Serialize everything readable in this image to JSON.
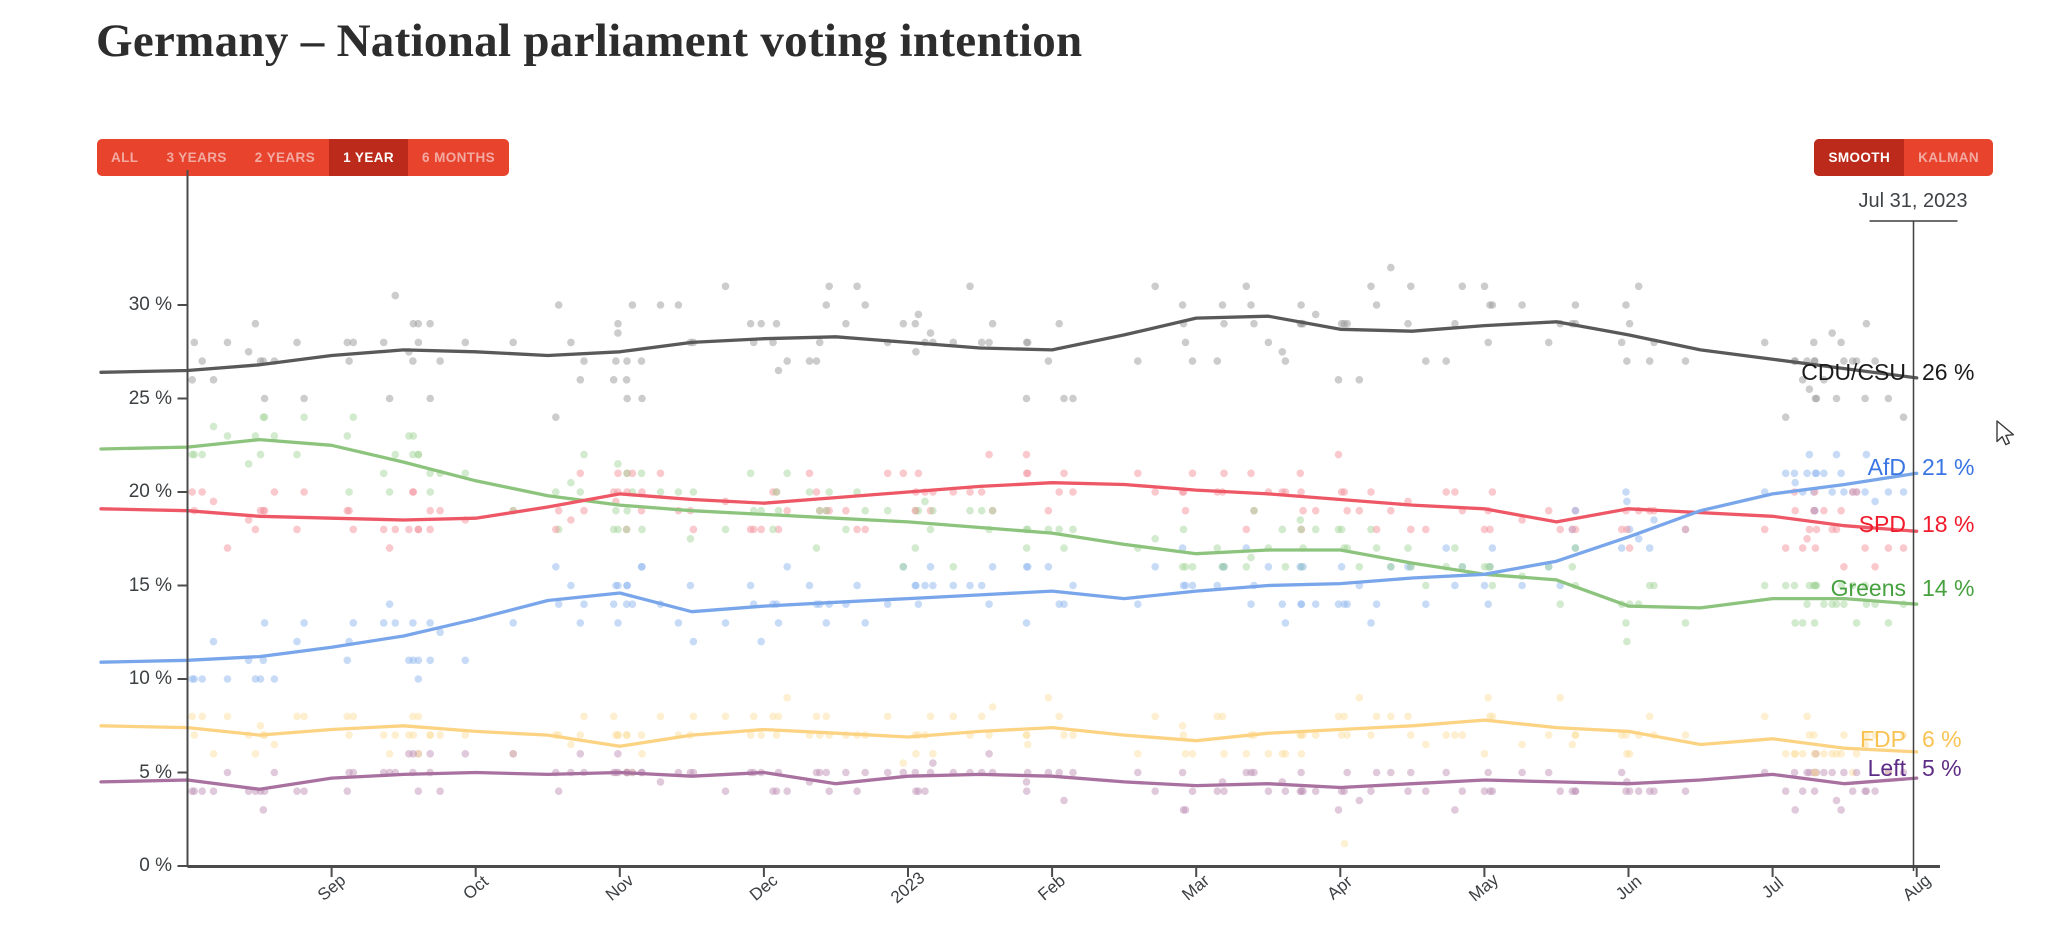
{
  "header": {
    "title": "Germany – National parliament voting intention"
  },
  "controls": {
    "range_buttons": [
      {
        "label": "ALL",
        "active": false
      },
      {
        "label": "3 YEARS",
        "active": false
      },
      {
        "label": "2 YEARS",
        "active": false
      },
      {
        "label": "1 YEAR",
        "active": true
      },
      {
        "label": "6 MONTHS",
        "active": false
      }
    ],
    "mode_buttons": [
      {
        "label": "SMOOTH",
        "active": true
      },
      {
        "label": "KALMAN",
        "active": false
      }
    ]
  },
  "hover": {
    "date_label": "Jul 31, 2023"
  },
  "chart_data": {
    "type": "line",
    "title": "Germany – National parliament voting intention",
    "x_axis": {
      "tick_labels": [
        "Sep",
        "Oct",
        "Nov",
        "Dec",
        "2023",
        "Feb",
        "Mar",
        "Apr",
        "May",
        "Jun",
        "Jul",
        "Aug"
      ],
      "start": "Aug 2022",
      "end": "Aug 2023"
    },
    "y_axis": {
      "tick_labels": [
        "0 %",
        "5 %",
        "10 %",
        "15 %",
        "20 %",
        "25 %",
        "30 %"
      ],
      "tick_values": [
        0,
        5,
        10,
        15,
        20,
        25,
        30
      ],
      "unit": "%",
      "min": 0,
      "max": 33
    },
    "x_months": [
      -0.6,
      0,
      0.5,
      1,
      1.5,
      2,
      2.5,
      3,
      3.5,
      4,
      4.5,
      5,
      5.5,
      6,
      6.5,
      7,
      7.5,
      8,
      8.5,
      9,
      9.5,
      10,
      10.5,
      11,
      11.5,
      12
    ],
    "series": [
      {
        "name": "CDU/CSU",
        "slug": "cdu-csu",
        "end_label": "26 %",
        "end_value": 26,
        "line_color": "#595959",
        "label_color": "#1b1b1b",
        "dot_color": "#9a9a9a",
        "values": [
          26.4,
          26.5,
          26.8,
          27.3,
          27.6,
          27.5,
          27.3,
          27.5,
          28.0,
          28.2,
          28.3,
          28.0,
          27.7,
          27.6,
          28.4,
          29.3,
          29.4,
          28.7,
          28.6,
          28.9,
          29.1,
          28.4,
          27.6,
          27.1,
          26.6,
          26.1
        ]
      },
      {
        "name": "AfD",
        "slug": "afd",
        "end_label": "21 %",
        "end_value": 21,
        "line_color": "#79a6ea",
        "label_color": "#3a75e3",
        "dot_color": "#8fb8ef",
        "values": [
          10.9,
          11.0,
          11.2,
          11.7,
          12.3,
          13.2,
          14.2,
          14.6,
          13.6,
          13.9,
          14.1,
          14.3,
          14.5,
          14.7,
          14.3,
          14.7,
          15.0,
          15.1,
          15.4,
          15.6,
          16.3,
          17.6,
          19.0,
          19.9,
          20.4,
          21.0
        ]
      },
      {
        "name": "SPD",
        "slug": "spd",
        "end_label": "18 %",
        "end_value": 18,
        "line_color": "#ee5766",
        "label_color": "#f11b2b",
        "dot_color": "#f4939d",
        "values": [
          19.1,
          19.0,
          18.7,
          18.6,
          18.5,
          18.6,
          19.2,
          19.9,
          19.6,
          19.4,
          19.7,
          20.0,
          20.3,
          20.5,
          20.4,
          20.1,
          19.9,
          19.6,
          19.3,
          19.1,
          18.4,
          19.1,
          18.9,
          18.7,
          18.2,
          17.9
        ]
      },
      {
        "name": "Greens",
        "slug": "greens",
        "end_label": "14 %",
        "end_value": 14,
        "line_color": "#8cc47d",
        "label_color": "#46a13e",
        "dot_color": "#a6d69c",
        "values": [
          22.3,
          22.4,
          22.8,
          22.5,
          21.6,
          20.6,
          19.8,
          19.3,
          19.0,
          18.8,
          18.6,
          18.4,
          18.1,
          17.8,
          17.2,
          16.7,
          16.9,
          16.9,
          16.2,
          15.6,
          15.3,
          13.9,
          13.8,
          14.3,
          14.3,
          14.0
        ]
      },
      {
        "name": "FDP",
        "slug": "fdp",
        "end_label": "6 %",
        "end_value": 6,
        "line_color": "#fbd383",
        "label_color": "#f9c353",
        "dot_color": "#fbdf9f",
        "values": [
          7.5,
          7.4,
          7.0,
          7.3,
          7.5,
          7.2,
          7.0,
          6.4,
          7.0,
          7.3,
          7.1,
          6.9,
          7.2,
          7.4,
          7.0,
          6.7,
          7.1,
          7.3,
          7.5,
          7.8,
          7.4,
          7.2,
          6.5,
          6.8,
          6.3,
          6.1
        ]
      },
      {
        "name": "Left",
        "slug": "left",
        "end_label": "5 %",
        "end_value": 5,
        "line_color": "#a9719f",
        "label_color": "#5e2c86",
        "dot_color": "#bf93b8",
        "values": [
          4.5,
          4.6,
          4.1,
          4.7,
          4.9,
          5.0,
          4.9,
          5.0,
          4.8,
          5.0,
          4.4,
          4.8,
          4.9,
          4.8,
          4.5,
          4.3,
          4.4,
          4.2,
          4.4,
          4.6,
          4.5,
          4.4,
          4.6,
          4.9,
          4.4,
          4.7
        ]
      }
    ],
    "scatter_style": {
      "seed": 20230731,
      "poll_count": 160,
      "dot_radius": 3.8,
      "dot_opacity": 0.5,
      "spreads": [
        1.8,
        1.4,
        1.2,
        1.4,
        0.9,
        0.7
      ],
      "clamps": [
        [
          23,
          32
        ],
        [
          9,
          22
        ],
        [
          15,
          23
        ],
        [
          11,
          25
        ],
        [
          4,
          10
        ],
        [
          3,
          7
        ]
      ]
    },
    "outlier_dots": [
      {
        "series_index": 4,
        "month": 8.03,
        "value": 1.2
      }
    ]
  }
}
